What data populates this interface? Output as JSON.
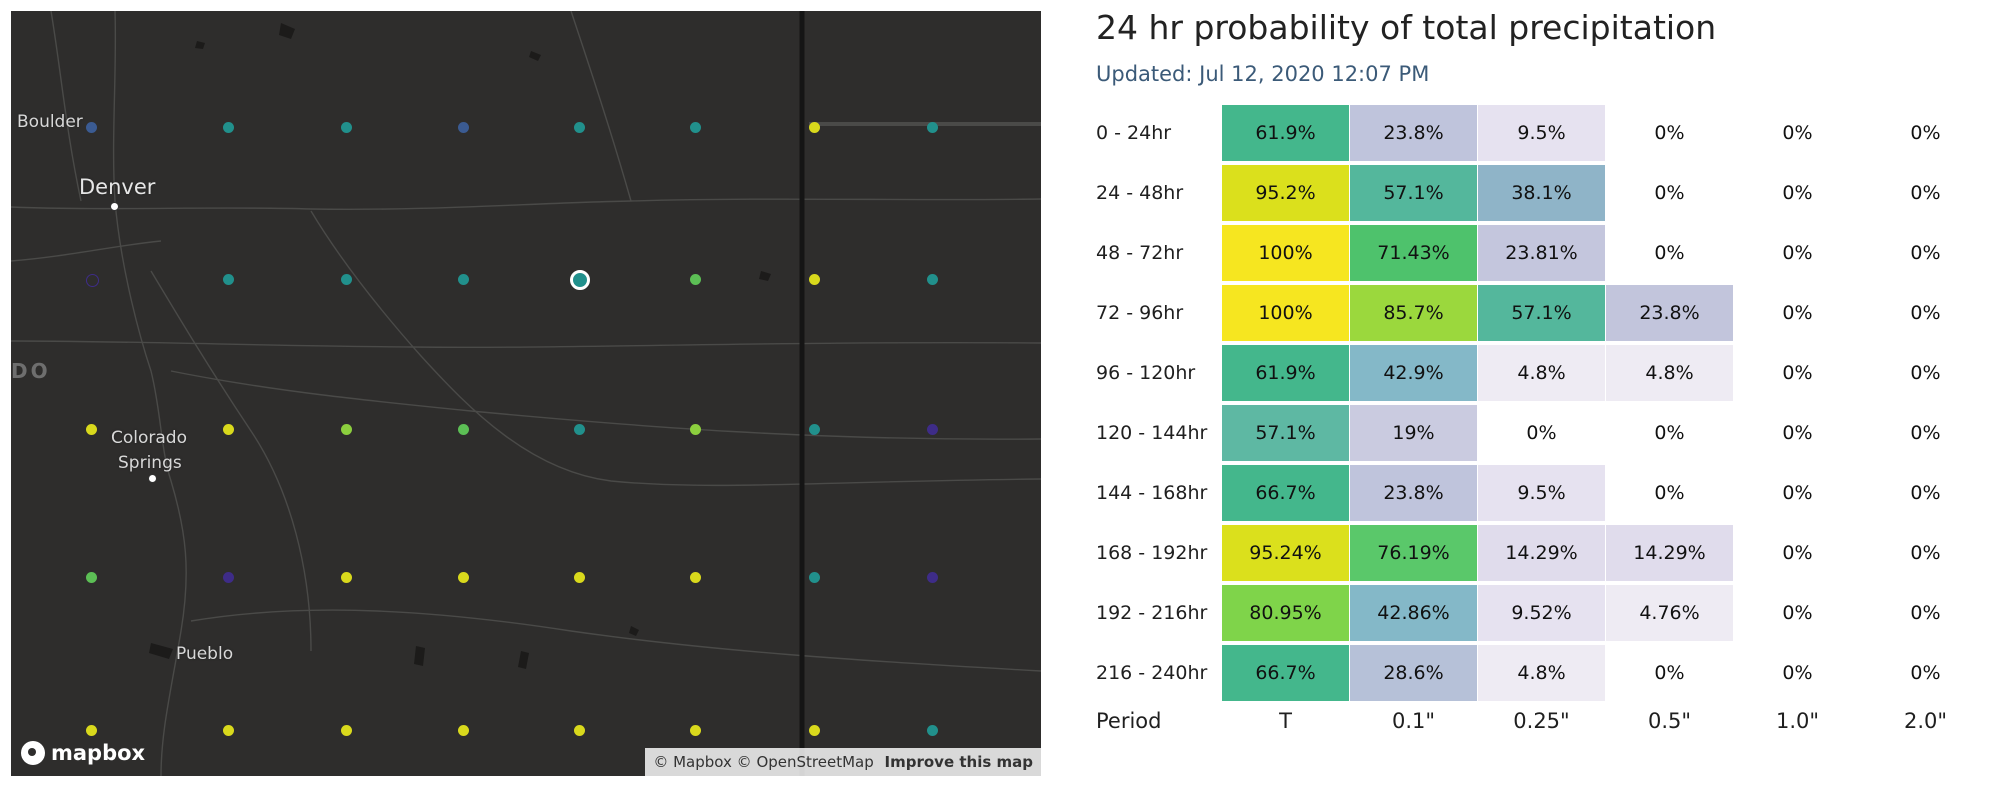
{
  "map": {
    "cities": [
      {
        "key": "boulder",
        "name": "Boulder"
      },
      {
        "key": "denver",
        "name": "Denver"
      },
      {
        "key": "colorado-springs-1",
        "name": "Colorado"
      },
      {
        "key": "colorado-springs-2",
        "name": "Springs"
      },
      {
        "key": "pueblo",
        "name": "Pueblo"
      }
    ],
    "state_label": "DO",
    "logo_text": "mapbox",
    "attribution": {
      "mapbox": "© Mapbox",
      "osm": "© OpenStreetMap",
      "improve": "Improve this map"
    },
    "dot_colors": {
      "blue": "#3b5b92",
      "teal": "#21908c",
      "yellow": "#d9d91c",
      "green": "#5cbf55",
      "indigo": "#3e2c88",
      "ltgreen": "#8ccf3e"
    },
    "dot_rows": [
      [
        "blue",
        "teal",
        "teal",
        "blue",
        "teal",
        "teal",
        "yellow",
        "teal"
      ],
      [
        "indigo-hollow",
        "teal",
        "teal",
        "teal",
        "selected",
        "green",
        "yellow",
        "teal"
      ],
      [
        "yellow",
        "yellow",
        "ltgreen",
        "green",
        "teal",
        "ltgreen",
        "teal",
        "indigo"
      ],
      [
        "green",
        "indigo",
        "yellow",
        "yellow",
        "yellow",
        "yellow",
        "teal",
        "indigo"
      ],
      [
        "yellow",
        "yellow",
        "yellow",
        "yellow",
        "yellow",
        "yellow",
        "yellow",
        "teal"
      ]
    ]
  },
  "panel": {
    "title": "24 hr probability of total precipitation",
    "updated": "Updated: Jul 12, 2020 12:07 PM",
    "columns": [
      "T",
      "0.1\"",
      "0.25\"",
      "0.5\"",
      "1.0\"",
      "2.0\""
    ],
    "period_label": "Period",
    "rows": [
      {
        "period": "0 - 24hr",
        "values": [
          "61.9%",
          "23.8%",
          "9.5%",
          "0%",
          "0%",
          "0%"
        ]
      },
      {
        "period": "24 - 48hr",
        "values": [
          "95.2%",
          "57.1%",
          "38.1%",
          "0%",
          "0%",
          "0%"
        ]
      },
      {
        "period": "48 - 72hr",
        "values": [
          "100%",
          "71.43%",
          "23.81%",
          "0%",
          "0%",
          "0%"
        ]
      },
      {
        "period": "72 - 96hr",
        "values": [
          "100%",
          "85.7%",
          "57.1%",
          "23.8%",
          "0%",
          "0%"
        ]
      },
      {
        "period": "96 - 120hr",
        "values": [
          "61.9%",
          "42.9%",
          "4.8%",
          "4.8%",
          "0%",
          "0%"
        ]
      },
      {
        "period": "120 - 144hr",
        "values": [
          "57.1%",
          "19%",
          "0%",
          "0%",
          "0%",
          "0%"
        ]
      },
      {
        "period": "144 - 168hr",
        "values": [
          "66.7%",
          "23.8%",
          "9.5%",
          "0%",
          "0%",
          "0%"
        ]
      },
      {
        "period": "168 - 192hr",
        "values": [
          "95.24%",
          "76.19%",
          "14.29%",
          "14.29%",
          "0%",
          "0%"
        ]
      },
      {
        "period": "192 - 216hr",
        "values": [
          "80.95%",
          "42.86%",
          "9.52%",
          "4.76%",
          "0%",
          "0%"
        ]
      },
      {
        "period": "216 - 240hr",
        "values": [
          "66.7%",
          "28.6%",
          "4.8%",
          "0%",
          "0%",
          "0%"
        ]
      }
    ],
    "cell_colors": [
      [
        "#44b78c",
        "#bfc4dc",
        "#e6e2f0",
        null,
        null,
        null
      ],
      [
        "#dbe01c",
        "#54b79c",
        "#8fb4c8",
        null,
        null,
        null
      ],
      [
        "#f6e620",
        "#4ec26c",
        "#c4c6dd",
        null,
        null,
        null
      ],
      [
        "#f6e620",
        "#9bd83d",
        "#54b79c",
        "#c2c5dc",
        null,
        null
      ],
      [
        "#44b78c",
        "#84b8c8",
        "#eeebf3",
        "#eeebf3",
        null,
        null
      ],
      [
        "#5eb8a3",
        "#cacbe0",
        null,
        null,
        null,
        null
      ],
      [
        "#44b78c",
        "#bfc4dc",
        "#e6e2f0",
        null,
        null,
        null
      ],
      [
        "#dbe01c",
        "#5ac86a",
        "#e0dcec",
        "#e0dcec",
        null,
        null
      ],
      [
        "#7fd44a",
        "#84b8c8",
        "#e6e2f0",
        "#eeebf3",
        null,
        null
      ],
      [
        "#44b78c",
        "#b6c1d8",
        "#eeebf3",
        null,
        null,
        null
      ]
    ]
  }
}
